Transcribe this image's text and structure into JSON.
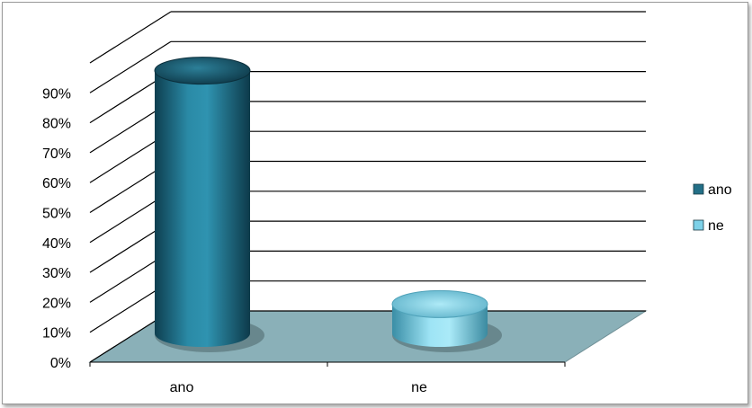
{
  "chart_data": {
    "type": "bar",
    "style": "3d-cylinder",
    "categories": [
      "ano",
      "ne"
    ],
    "values": [
      0.89,
      0.11
    ],
    "ylim": [
      0,
      1
    ],
    "yticks": [
      "0%",
      "10%",
      "20%",
      "30%",
      "40%",
      "50%",
      "60%",
      "70%",
      "80%",
      "90%"
    ],
    "legend": {
      "position": "right",
      "items": [
        {
          "label": "ano",
          "color": "#236f87"
        },
        {
          "label": "ne",
          "color": "#7dd1e8"
        }
      ]
    },
    "grid": true,
    "floor_color": "#8ab0b8"
  }
}
